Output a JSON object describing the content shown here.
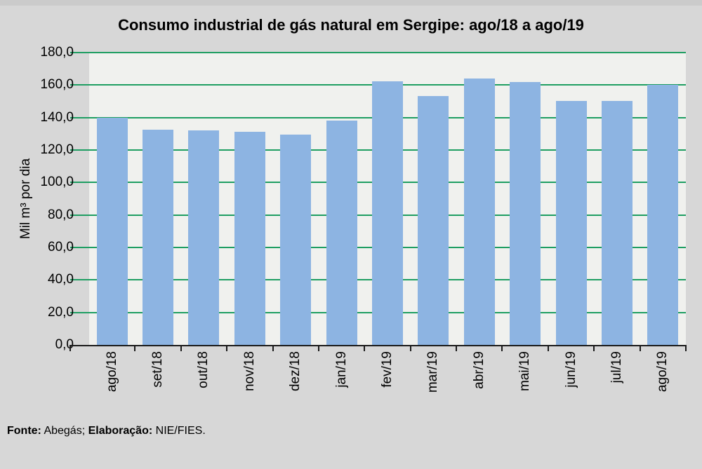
{
  "title": "Consumo industrial de gás natural em Sergipe: ago/18 a ago/19",
  "footer": {
    "source_label": "Fonte:",
    "source_value": " Abegás; ",
    "elaboration_label": "Elaboração:",
    "elaboration_value": " NIE/FIES."
  },
  "chart_data": {
    "type": "bar",
    "title": "Consumo industrial de gás natural em Sergipe: ago/18 a ago/19",
    "xlabel": "",
    "ylabel": "Mil m³ por dia",
    "categories": [
      "ago/18",
      "set/18",
      "out/18",
      "nov/18",
      "dez/18",
      "jan/19",
      "fev/19",
      "mar/19",
      "abr/19",
      "mai/19",
      "jun/19",
      "jul/19",
      "ago/19"
    ],
    "values": [
      139.8,
      132.5,
      132.3,
      131.4,
      129.6,
      138.3,
      162.3,
      153.2,
      164.0,
      162.0,
      150.2,
      150.2,
      160.0
    ],
    "ylim": [
      0,
      180
    ],
    "ytick_step": 20,
    "ytick_labels": [
      "0,0",
      "20,0",
      "40,0",
      "60,0",
      "80,0",
      "100,0",
      "120,0",
      "140,0",
      "160,0",
      "180,0"
    ],
    "grid": true,
    "legend": false,
    "colors": {
      "bar": "#8db4e2",
      "gridline": "#1e9e62",
      "plot_bg": "#f0f1ee",
      "page_bg": "#d7d7d7",
      "axis": "#1a1a1a",
      "text": "#000000"
    }
  }
}
